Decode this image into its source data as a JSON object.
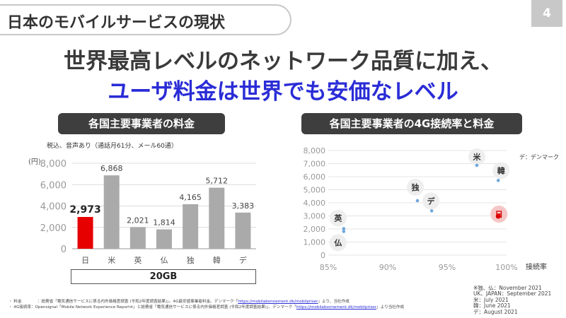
{
  "header": {
    "title": "日本のモバイルサービスの現状",
    "page_number": "4"
  },
  "headline": {
    "line1": "世界最高レベルのネットワーク品質に加え、",
    "line2": "ユーザ料金は世界でも安価なレベル"
  },
  "left_panel": {
    "title": "各国主要事業者の料金",
    "note": "税込、音声あり（通話月61分、メール60通）",
    "unit": "(円)",
    "plan_label": "20GB"
  },
  "right_panel": {
    "title": "各国主要事業者の4G接続率と料金",
    "legend_note": "デ：デンマーク",
    "xlabel": "接続率"
  },
  "colors": {
    "japan": "#e60000",
    "bars": "#aaaaaa",
    "points": "#6fa8dc",
    "headline_accent": "#2a2cd6"
  },
  "chart_data": [
    {
      "type": "bar",
      "title": "各国主要事業者の料金",
      "categories": [
        "日",
        "米",
        "英",
        "仏",
        "独",
        "韓",
        "デ"
      ],
      "values": [
        2973,
        6868,
        2021,
        1814,
        4165,
        5712,
        3383
      ],
      "value_labels": [
        "2,973",
        "6,868",
        "2,021",
        "1,814",
        "4,165",
        "5,712",
        "3,383"
      ],
      "ylim": [
        0,
        8000
      ],
      "yticks": [
        0,
        2000,
        4000,
        6000,
        8000
      ],
      "ytick_labels": [
        "0",
        "2,000",
        "4,000",
        "6,000",
        "8,000"
      ],
      "ylabel": "(円)",
      "xlabel": "20GB",
      "grid": true,
      "highlight": "日"
    },
    {
      "type": "scatter",
      "title": "各国主要事業者の4G接続率と料金",
      "xlabel": "接続率",
      "xlim": [
        0.85,
        1.0
      ],
      "xticks": [
        0.85,
        0.9,
        0.95,
        1.0
      ],
      "xtick_labels": [
        "85%",
        "90%",
        "95%",
        "100%"
      ],
      "ylim": [
        0,
        8000
      ],
      "yticks": [
        0,
        1000,
        2000,
        3000,
        4000,
        5000,
        6000,
        7000,
        8000
      ],
      "ytick_labels": [
        "0",
        "1,000",
        "2,000",
        "3,000",
        "4,000",
        "5,000",
        "6,000",
        "7,000",
        "8,000"
      ],
      "grid": true,
      "points": [
        {
          "label": "米",
          "x": 0.975,
          "y": 6868
        },
        {
          "label": "韓",
          "x": 0.993,
          "y": 5712
        },
        {
          "label": "独",
          "x": 0.925,
          "y": 4165
        },
        {
          "label": "デ",
          "x": 0.937,
          "y": 3383
        },
        {
          "label": "日",
          "x": 0.993,
          "y": 2973
        },
        {
          "label": "英",
          "x": 0.863,
          "y": 2021
        },
        {
          "label": "仏",
          "x": 0.863,
          "y": 1814
        }
      ]
    }
  ],
  "footnotes": {
    "line1_prefix": "・ 料金　　　　：総務省「電気通信サービスに係る内外価格差調査 (令和2年度調査結果)」。4G最安値事業者料金。デンマーク「",
    "line1_link": "https://mobilabonnement.dk/mobilpriser",
    "line1_suffix": "」より、当社作成",
    "line2_prefix": "・ 4G接続率：Opensignal「Mobile Network Experience Report※」と総務省「電気通信サービスに係る内外価格差調査 (令和2年度調査結果)」、デンマーク「",
    "line2_link": "https://mobilabonnement.dk/mobilpriser",
    "line2_suffix": "」より当社作成",
    "dates": [
      "※独、仏：November 2021",
      "UK、JAPAN：September 2021",
      "米：July 2021",
      "韓：June 2021",
      "デ：August 2021"
    ]
  }
}
